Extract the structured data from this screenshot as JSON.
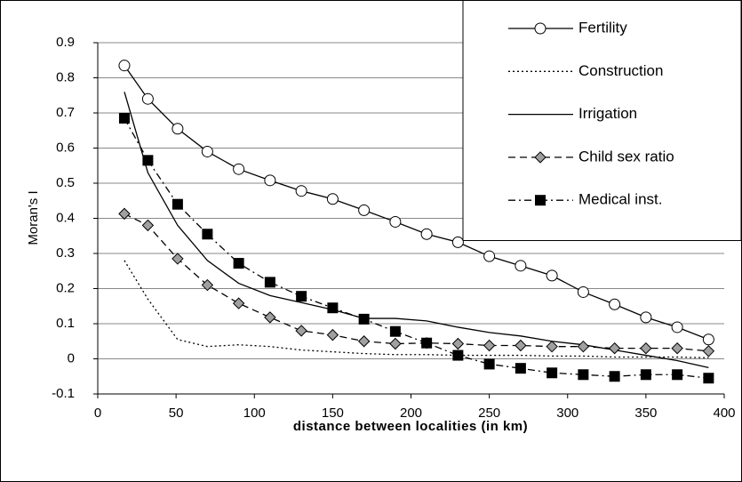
{
  "chart_data": {
    "type": "line",
    "x_label": "distance between localities (in km)",
    "y_label": "Moran's I",
    "x": [
      17,
      32,
      51,
      70,
      90,
      110,
      130,
      150,
      170,
      190,
      210,
      230,
      250,
      270,
      290,
      310,
      330,
      350,
      370,
      390
    ],
    "series": [
      {
        "name": "Fertility",
        "color": "#000000",
        "line_style": "solid",
        "marker": "circle",
        "values": [
          0.835,
          0.74,
          0.655,
          0.59,
          0.54,
          0.508,
          0.478,
          0.455,
          0.423,
          0.39,
          0.355,
          0.332,
          0.292,
          0.265,
          0.237,
          0.19,
          0.155,
          0.118,
          0.09,
          0.055
        ]
      },
      {
        "name": "Construction",
        "color": "#000000",
        "line_style": "dotted",
        "marker": "none",
        "values": [
          0.28,
          0.17,
          0.055,
          0.035,
          0.04,
          0.035,
          0.025,
          0.02,
          0.015,
          0.012,
          0.012,
          0.01,
          0.01,
          0.01,
          0.008,
          0.008,
          0.005,
          0.005,
          0.005,
          0.003
        ]
      },
      {
        "name": "Irrigation",
        "color": "#000000",
        "line_style": "solid",
        "marker": "none",
        "values": [
          0.76,
          0.53,
          0.38,
          0.28,
          0.215,
          0.18,
          0.16,
          0.14,
          0.115,
          0.115,
          0.108,
          0.09,
          0.075,
          0.065,
          0.05,
          0.04,
          0.025,
          0.01,
          -0.005,
          -0.025
        ]
      },
      {
        "name": "Child sex ratio",
        "color": "#000000",
        "line_style": "dashed",
        "marker": "diamond",
        "values": [
          0.413,
          0.38,
          0.285,
          0.21,
          0.158,
          0.118,
          0.08,
          0.068,
          0.05,
          0.043,
          0.045,
          0.043,
          0.038,
          0.038,
          0.035,
          0.035,
          0.03,
          0.03,
          0.03,
          0.022
        ]
      },
      {
        "name": "Medical inst.",
        "color": "#000000",
        "line_style": "dashdot",
        "marker": "square",
        "values": [
          0.685,
          0.565,
          0.44,
          0.355,
          0.272,
          0.218,
          0.178,
          0.145,
          0.113,
          0.078,
          0.045,
          0.01,
          -0.015,
          -0.027,
          -0.04,
          -0.045,
          -0.05,
          -0.045,
          -0.045,
          -0.055
        ]
      }
    ],
    "xlim": [
      0,
      400
    ],
    "xticks": [
      0,
      50,
      100,
      150,
      200,
      250,
      300,
      350,
      400
    ],
    "ylim": [
      -0.1,
      0.9
    ],
    "yticks": [
      -0.1,
      0,
      0.1,
      0.2,
      0.3,
      0.4,
      0.5,
      0.6,
      0.7,
      0.8,
      0.9
    ],
    "grid": true,
    "legend": "top-right"
  }
}
